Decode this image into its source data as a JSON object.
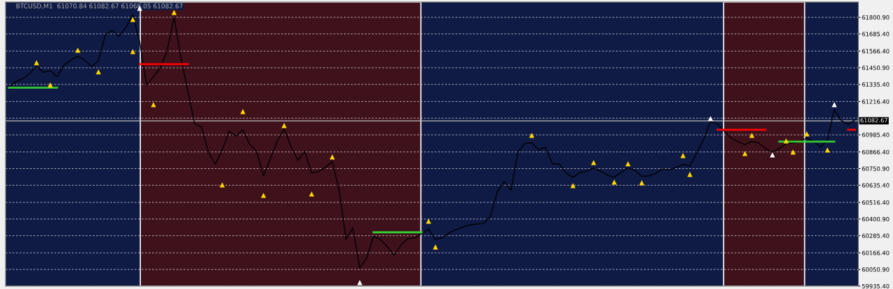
{
  "chart_data": {
    "type": "line",
    "title": "BTCUSD,M1  61070.84 61082.67 61068.05 61082.67",
    "categories": [
      null,
      null,
      null,
      null,
      null,
      null,
      null,
      null,
      null,
      null,
      null,
      null,
      null,
      null,
      null,
      null,
      null,
      null,
      null,
      null,
      null,
      null,
      null,
      null,
      null,
      null,
      null,
      null,
      null,
      null,
      null,
      null,
      null,
      null,
      null,
      null,
      null,
      null,
      null,
      null,
      null,
      null,
      null,
      null,
      null,
      null,
      null,
      null,
      null,
      null,
      null,
      null,
      null,
      null,
      null,
      null,
      null,
      null,
      null,
      null,
      null,
      null,
      null,
      null,
      null,
      null,
      null,
      null,
      null,
      null,
      null,
      null,
      null,
      null,
      null,
      null,
      null,
      null,
      null,
      null,
      null,
      null,
      null,
      null,
      null,
      null,
      null,
      null,
      null,
      null,
      null,
      null,
      null,
      null,
      null,
      null,
      null,
      null,
      null,
      null,
      null,
      null,
      null,
      null,
      null,
      null,
      null,
      null,
      null,
      null,
      null,
      null,
      null,
      null,
      null,
      null,
      null,
      null,
      null,
      null,
      null,
      null,
      null,
      null
    ],
    "ylim": [
      59935.4,
      61907
    ],
    "yticks": [
      {
        "value": 61800.9,
        "label": "61800.90"
      },
      {
        "value": 61685.4,
        "label": "61685.40"
      },
      {
        "value": 61566.4,
        "label": "61566.40"
      },
      {
        "value": 61450.9,
        "label": "61450.90"
      },
      {
        "value": 61335.4,
        "label": "61335.40"
      },
      {
        "value": 61216.4,
        "label": "61216.40"
      },
      {
        "value": 61100.9,
        "label": null
      },
      {
        "value": 60985.4,
        "label": "60985.40"
      },
      {
        "value": 60866.4,
        "label": "60866.40"
      },
      {
        "value": 60750.9,
        "label": "60750.90"
      },
      {
        "value": 60635.4,
        "label": "60635.40"
      },
      {
        "value": 60516.4,
        "label": "60516.40"
      },
      {
        "value": 60400.9,
        "label": "60400.90"
      },
      {
        "value": 60285.4,
        "label": "60285.40"
      },
      {
        "value": 60166.4,
        "label": "60166.40"
      },
      {
        "value": 60050.9,
        "label": "60050.90"
      },
      {
        "value": 59935.4,
        "label": "59935.40"
      }
    ],
    "tick_labels": "y",
    "grid": "y",
    "ref_lines": [
      {
        "axis": "y",
        "value": 61082.67,
        "label": "61082.67",
        "color": "#c0c0c0"
      }
    ],
    "series": [
      {
        "color": "#000000",
        "values": [
          61320,
          61355,
          61375,
          61410,
          61462,
          61420,
          61430,
          61389,
          61470,
          61505,
          61530,
          61505,
          61458,
          61500,
          61680,
          61710,
          61670,
          61730,
          61820,
          61631,
          61330,
          61389,
          61450,
          61570,
          61801,
          61520,
          61290,
          61060,
          61040,
          60866,
          60780,
          60880,
          61010,
          60977,
          61020,
          60920,
          60870,
          60700,
          60820,
          60940,
          61026,
          60905,
          60808,
          60870,
          60720,
          60730,
          60759,
          60800,
          60600,
          60260,
          60340,
          60060,
          60130,
          60280,
          60260,
          60210,
          60150,
          60220,
          60265,
          60270,
          60300,
          60330,
          60260,
          60270,
          60305,
          60328,
          60345,
          60360,
          60366,
          60370,
          60420,
          60590,
          60662,
          60600,
          60866,
          60925,
          60930,
          60880,
          60900,
          60784,
          60784,
          60720,
          60690,
          60724,
          60733,
          60755,
          60735,
          60706,
          60690,
          60726,
          60755,
          60740,
          60697,
          60700,
          60718,
          60748,
          60742,
          60760,
          60780,
          60770,
          60860,
          60953,
          61080,
          61060,
          61010,
          60963,
          60937,
          60918,
          60940,
          60929,
          60890,
          60866,
          60890,
          60925,
          60929,
          60939,
          60963,
          60940,
          60900,
          60950,
          61160,
          61085,
          61058,
          61089
        ]
      },
      {
        "color": "#32cd32",
        "values": [
          61312,
          61312,
          61312,
          61312,
          61312,
          61312,
          61312,
          61312,
          null,
          null,
          null,
          null,
          null,
          null,
          null,
          null,
          null,
          null,
          null,
          null,
          null,
          null,
          null,
          null,
          null,
          null,
          null,
          null,
          null,
          null,
          null,
          null,
          null,
          null,
          null,
          null,
          null,
          null,
          null,
          null,
          null,
          null,
          null,
          null,
          null,
          null,
          null,
          null,
          null,
          null,
          null,
          null,
          null,
          60309,
          60309,
          60309,
          60309,
          60309,
          60309,
          60309,
          60309,
          null,
          null,
          null,
          null,
          null,
          null,
          null,
          null,
          null,
          null,
          null,
          null,
          null,
          null,
          null,
          null,
          null,
          null,
          null,
          null,
          null,
          null,
          null,
          null,
          null,
          null,
          null,
          null,
          null,
          null,
          null,
          null,
          null,
          null,
          null,
          null,
          null,
          null,
          null,
          null,
          null,
          null,
          null,
          null,
          null,
          null,
          null,
          null,
          null,
          null,
          null,
          60938,
          60938,
          60938,
          60938,
          60938,
          60938,
          60938,
          60938,
          60938,
          null,
          null,
          null
        ]
      },
      {
        "color": "#ff0000",
        "values": [
          null,
          null,
          null,
          null,
          null,
          null,
          null,
          null,
          null,
          null,
          null,
          null,
          null,
          null,
          null,
          null,
          null,
          null,
          null,
          61476,
          61476,
          61476,
          61476,
          61476,
          61476,
          61476,
          61476,
          null,
          null,
          null,
          null,
          null,
          null,
          null,
          null,
          null,
          null,
          null,
          null,
          null,
          null,
          null,
          null,
          null,
          null,
          null,
          null,
          null,
          null,
          null,
          null,
          null,
          null,
          null,
          null,
          null,
          null,
          null,
          null,
          null,
          null,
          null,
          null,
          null,
          null,
          null,
          null,
          null,
          null,
          null,
          null,
          null,
          null,
          null,
          null,
          null,
          null,
          null,
          null,
          null,
          null,
          null,
          null,
          null,
          null,
          null,
          null,
          null,
          null,
          null,
          null,
          null,
          null,
          null,
          null,
          null,
          null,
          null,
          null,
          null,
          null,
          null,
          null,
          61021,
          61021,
          61021,
          61021,
          61021,
          61021,
          61021,
          61021,
          null,
          null,
          null,
          null,
          null,
          null,
          null,
          null,
          null,
          null,
          null,
          61021,
          61021
        ]
      },
      {
        "type": "scatter",
        "marker": "triangle",
        "color": "#ffd700",
        "values": [
          null,
          null,
          null,
          null,
          61486,
          null,
          null,
          null,
          null,
          null,
          61573,
          null,
          null,
          null,
          null,
          null,
          null,
          null,
          61786,
          null,
          null,
          null,
          null,
          null,
          61835,
          null,
          null,
          null,
          null,
          null,
          null,
          null,
          null,
          null,
          61147,
          null,
          null,
          null,
          null,
          null,
          61050,
          null,
          null,
          null,
          null,
          null,
          null,
          60832,
          null,
          null,
          null,
          null,
          null,
          null,
          null,
          null,
          null,
          null,
          null,
          null,
          null,
          60386,
          null,
          null,
          null,
          null,
          null,
          null,
          null,
          null,
          null,
          null,
          null,
          null,
          null,
          null,
          60982,
          null,
          null,
          null,
          null,
          null,
          null,
          null,
          null,
          60793,
          null,
          null,
          null,
          null,
          60784,
          null,
          null,
          null,
          null,
          null,
          null,
          null,
          60842,
          null,
          null,
          null,
          null,
          null,
          null,
          null,
          null,
          null,
          60982,
          null,
          null,
          null,
          null,
          60943,
          null,
          null,
          60992,
          null,
          null,
          null,
          null,
          null,
          null,
          null
        ]
      },
      {
        "type": "scatter",
        "marker": "triangle",
        "color": "#ffffff",
        "values": [
          null,
          null,
          null,
          null,
          null,
          null,
          null,
          null,
          null,
          null,
          null,
          null,
          null,
          null,
          null,
          null,
          null,
          null,
          null,
          61864,
          null,
          null,
          null,
          null,
          null,
          null,
          null,
          null,
          null,
          null,
          null,
          null,
          null,
          null,
          null,
          null,
          null,
          null,
          null,
          null,
          null,
          null,
          null,
          null,
          null,
          null,
          null,
          null,
          null,
          null,
          null,
          59960,
          null,
          null,
          null,
          null,
          null,
          null,
          null,
          null,
          null,
          null,
          null,
          null,
          null,
          null,
          null,
          null,
          null,
          null,
          null,
          null,
          null,
          null,
          null,
          null,
          null,
          null,
          null,
          null,
          null,
          null,
          null,
          null,
          null,
          null,
          null,
          null,
          null,
          null,
          null,
          null,
          null,
          null,
          null,
          null,
          null,
          null,
          null,
          null,
          null,
          null,
          61098,
          null,
          null,
          null,
          null,
          null,
          null,
          null,
          null,
          60846,
          null,
          null,
          null,
          null,
          null,
          null,
          null,
          null,
          61195,
          null,
          null,
          null
        ]
      },
      {
        "type": "scatter",
        "marker": "triangle",
        "color": "#ffd700",
        "values": [
          null,
          null,
          null,
          null,
          null,
          null,
          61331,
          null,
          null,
          null,
          null,
          null,
          null,
          61423,
          null,
          null,
          null,
          null,
          61563,
          null,
          null,
          61195,
          null,
          null,
          null,
          null,
          null,
          null,
          null,
          null,
          null,
          60638,
          null,
          null,
          null,
          null,
          null,
          60565,
          null,
          null,
          null,
          null,
          null,
          null,
          60575,
          null,
          null,
          null,
          null,
          null,
          null,
          null,
          null,
          null,
          null,
          null,
          null,
          null,
          null,
          null,
          null,
          null,
          60207,
          null,
          null,
          null,
          null,
          null,
          null,
          null,
          null,
          null,
          null,
          null,
          null,
          null,
          null,
          null,
          null,
          null,
          null,
          null,
          60633,
          null,
          null,
          null,
          null,
          null,
          60657,
          null,
          null,
          null,
          60653,
          null,
          null,
          null,
          null,
          null,
          null,
          60711,
          null,
          null,
          null,
          null,
          null,
          null,
          null,
          60856,
          null,
          null,
          null,
          null,
          null,
          null,
          60866,
          null,
          null,
          null,
          null,
          60880,
          null,
          null,
          null,
          null
        ]
      }
    ]
  }
}
